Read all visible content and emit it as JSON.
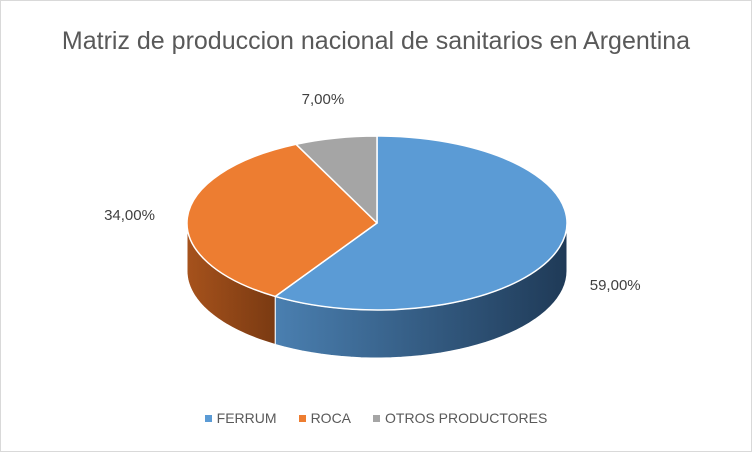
{
  "chart_data": {
    "type": "pie",
    "title": "Matriz de produccion nacional de sanitarios en Argentina",
    "categories": [
      "FERRUM",
      "ROCA",
      "OTROS PRODUCTORES"
    ],
    "values": [
      59.0,
      34.0,
      7.0
    ],
    "data_labels": [
      "59,00%",
      "34,00%",
      "7,00%"
    ],
    "colors": [
      "#5b9bd5",
      "#ed7d31",
      "#a5a5a5"
    ],
    "legend_position": "bottom",
    "style": "3d"
  }
}
